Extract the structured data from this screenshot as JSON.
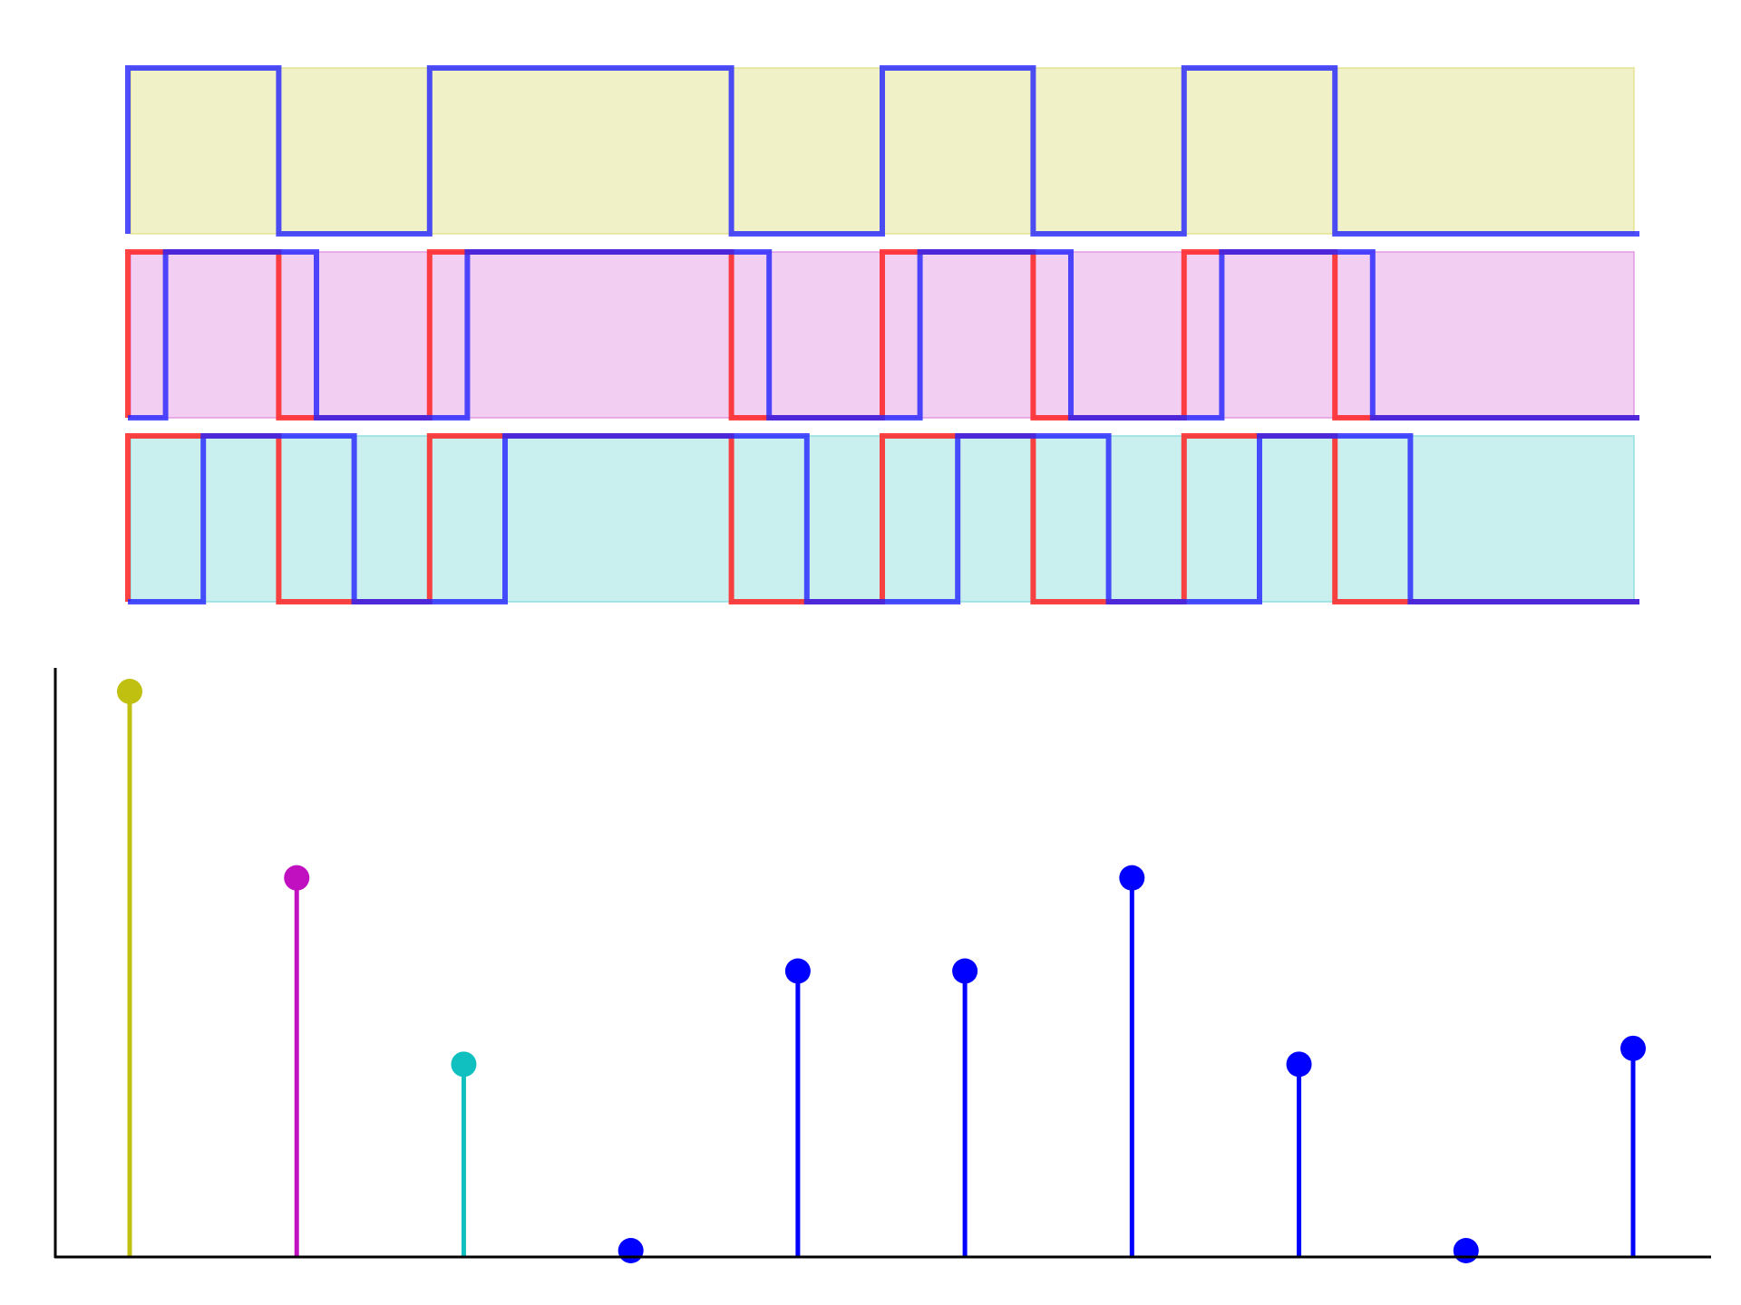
{
  "chart_data": [
    {
      "type": "line",
      "subtype": "step-waveform",
      "title": "",
      "xlabel": "",
      "ylabel": "",
      "axes_visible": false,
      "grid": false,
      "legend": "none",
      "xlim": [
        0,
        10
      ],
      "shifts": [
        0,
        1,
        2
      ],
      "panels": [
        {
          "fill": "#e6e69a",
          "fill_opacity": 0.55,
          "fill_edge": "#dede7e"
        },
        {
          "fill": "#e8a6e8",
          "fill_opacity": 0.55,
          "fill_edge": "#dd88dd"
        },
        {
          "fill": "#9ee2e2",
          "fill_opacity": 0.55,
          "fill_edge": "#7ed8d8"
        }
      ],
      "series": [
        {
          "role": "reference",
          "color": "#ff2222",
          "opacity": 0.85,
          "values": [
            1,
            0,
            1,
            1,
            0,
            1,
            0,
            1,
            0,
            0
          ]
        },
        {
          "role": "shifted",
          "color": "#2222ff",
          "opacity": 0.8,
          "values": [
            1,
            0,
            1,
            1,
            0,
            1,
            0,
            1,
            0,
            0
          ]
        }
      ]
    },
    {
      "type": "stem",
      "title": "",
      "xlabel": "",
      "ylabel": "",
      "grid": false,
      "legend": "none",
      "x": [
        0,
        1,
        2,
        3,
        4,
        5,
        6,
        7,
        8,
        9
      ],
      "values": [
        6,
        4,
        2,
        0,
        3,
        3,
        4,
        2,
        0,
        2.17
      ],
      "ylim": [
        0,
        6.4
      ],
      "colors": [
        "#c0c010",
        "#c010c0",
        "#10c0c0",
        "#0000ff",
        "#0000ff",
        "#0000ff",
        "#0000ff",
        "#0000ff",
        "#0000ff",
        "#0000ff"
      ]
    }
  ]
}
